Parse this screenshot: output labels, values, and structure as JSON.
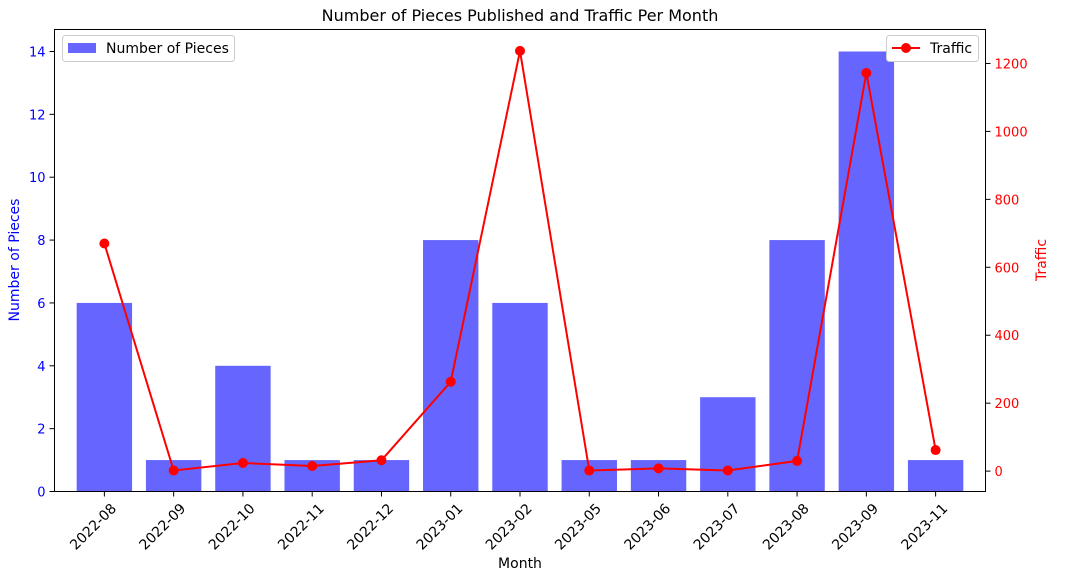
{
  "chart_data": {
    "type": "bar+line",
    "title": "Number of Pieces Published and Traffic Per Month",
    "xlabel": "Month",
    "categories": [
      "2022-08",
      "2022-09",
      "2022-10",
      "2022-11",
      "2022-12",
      "2023-01",
      "2023-02",
      "2023-05",
      "2023-06",
      "2023-07",
      "2023-08",
      "2023-09",
      "2023-11"
    ],
    "series": [
      {
        "name": "Number of Pieces",
        "type": "bar",
        "axis": "left",
        "color": "#6666ff",
        "values": [
          6,
          1,
          4,
          1,
          1,
          8,
          6,
          1,
          1,
          3,
          8,
          14,
          1
        ]
      },
      {
        "name": "Traffic",
        "type": "line",
        "axis": "right",
        "color": "#ff0000",
        "values": [
          670,
          2,
          24,
          15,
          32,
          263,
          1237,
          2,
          8,
          2,
          30,
          1172,
          62
        ]
      }
    ],
    "left_axis": {
      "label": "Number of Pieces",
      "color": "#0000ff",
      "ylim": [
        0,
        14.7
      ],
      "ticks": [
        0,
        2,
        4,
        6,
        8,
        10,
        12,
        14
      ]
    },
    "right_axis": {
      "label": "Traffic",
      "color": "#ff0000",
      "ylim": [
        -60,
        1300
      ],
      "ticks": [
        0,
        200,
        400,
        600,
        800,
        1000,
        1200
      ]
    },
    "legends": {
      "left": "top-left",
      "right": "top-right"
    },
    "grid": false
  }
}
